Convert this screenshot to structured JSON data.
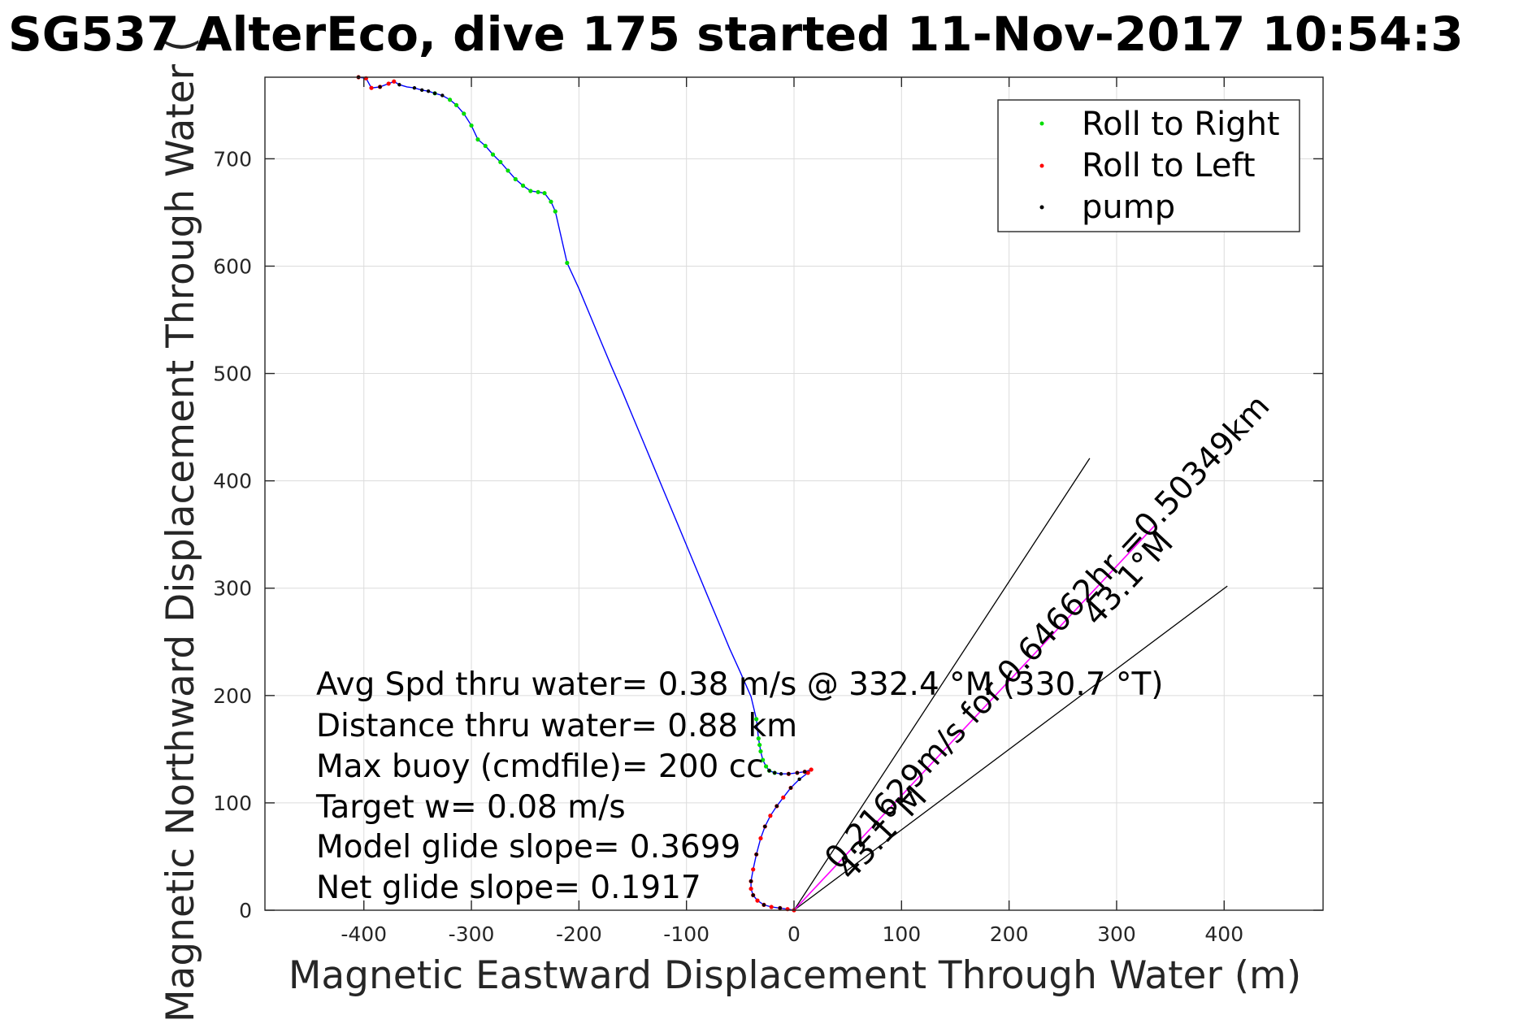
{
  "chart_data": {
    "type": "line",
    "title": "SG537 AlterEco, dive 175 started 11-Nov-2017 10:54:3",
    "xlabel": "Magnetic Eastward Displacement Through Water (m)",
    "ylabel": "Magnetic Northward Displacement Through Water (m)",
    "ylabel_visible": "Magnetic Northward Displacement Through Water (",
    "xlim": [
      -492,
      492
    ],
    "ylim": [
      0,
      776
    ],
    "xticks": [
      -400,
      -300,
      -200,
      -100,
      0,
      100,
      200,
      300,
      400
    ],
    "yticks": [
      0,
      100,
      200,
      300,
      400,
      500,
      600,
      700
    ],
    "grid": true,
    "legend_position": "top-right",
    "legend": [
      "Roll to Right",
      "Roll to Left",
      "pump"
    ],
    "colors": {
      "track": "#0000ff",
      "roll_right": "#00dd00",
      "roll_left": "#ff0000",
      "pump": "#000000",
      "heading_line": "#ff00ff",
      "wedge": "#000000",
      "grid": "#dcdcdc"
    },
    "track": {
      "x": [
        -405,
        -398,
        -393,
        -385,
        -377,
        -372,
        -367,
        -360,
        -353,
        -346,
        -340,
        -334,
        -327,
        -320,
        -314,
        -307,
        -300,
        -294,
        -287,
        -280,
        -273,
        -266,
        -259,
        -252,
        -245,
        -238,
        -232,
        -226,
        -222,
        -211,
        -200,
        -190,
        -180,
        -170,
        -160,
        -150,
        -140,
        -130,
        -120,
        -110,
        -100,
        -90,
        -80,
        -70,
        -60,
        -50,
        -40,
        -35,
        -33,
        -32,
        -31,
        -29,
        -26,
        -23,
        -18,
        -12,
        -5,
        3,
        10,
        16,
        13,
        5,
        -3,
        -10,
        -16,
        -22,
        -27,
        -31,
        -35,
        -38,
        -40,
        -40,
        -38,
        -34,
        -28,
        -21,
        -13,
        -6,
        0
      ],
      "y": [
        776,
        775,
        766,
        767,
        770,
        772,
        769,
        767,
        766,
        764,
        763,
        761,
        759,
        755,
        750,
        742,
        731,
        718,
        712,
        704,
        697,
        689,
        681,
        675,
        670,
        669,
        668,
        660,
        651,
        603,
        579,
        555,
        531,
        507,
        484,
        460,
        436,
        412,
        388,
        364,
        340,
        316,
        292,
        268,
        244,
        222,
        199,
        178,
        160,
        154,
        148,
        140,
        134,
        130,
        128,
        127,
        127,
        128,
        129,
        131,
        128,
        122,
        114,
        105,
        97,
        88,
        78,
        67,
        52,
        38,
        27,
        20,
        14,
        9,
        5,
        3,
        2,
        1,
        0
      ]
    },
    "roll_right_indices": [
      11,
      13,
      14,
      15,
      16,
      17,
      18,
      19,
      20,
      21,
      22,
      23,
      24,
      25,
      26,
      27,
      28,
      29,
      47,
      48,
      49,
      50,
      51,
      52,
      53,
      54
    ],
    "roll_left_indices": [
      0,
      1,
      2,
      3,
      4,
      5,
      56,
      57,
      58,
      59,
      60,
      62,
      63,
      64,
      65,
      66,
      67,
      68,
      69,
      70,
      71,
      72,
      73,
      74,
      75,
      76,
      77,
      78
    ],
    "pump_indices": [
      0,
      3,
      6,
      8,
      9,
      10,
      11,
      12,
      53,
      54,
      55,
      56,
      57,
      58,
      61,
      62,
      64,
      66,
      68,
      70,
      72,
      74,
      76
    ],
    "heading_line": {
      "x": [
        0,
        336
      ],
      "y": [
        0,
        359
      ]
    },
    "wedge_lines": [
      {
        "x": [
          0,
          275
        ],
        "y": [
          0,
          421
        ]
      },
      {
        "x": [
          0,
          403
        ],
        "y": [
          0,
          302
        ]
      }
    ],
    "annotations": {
      "info_lines": [
        "Avg Spd thru water=  0.38 m/s @ 332.4 °M (330.7 °T)",
        "Distance thru water=  0.88 km",
        "Max buoy (cmdfile)= 200 cc",
        "Target w= 0.08 m/s",
        "Model glide slope= 0.3699",
        "Net glide slope= 0.1917"
      ],
      "heading_text": "0.21629m/s for 0.64662hr =0.50349km",
      "angle_text_1": "43.1°M",
      "angle_text_2": "43.1°M"
    }
  }
}
